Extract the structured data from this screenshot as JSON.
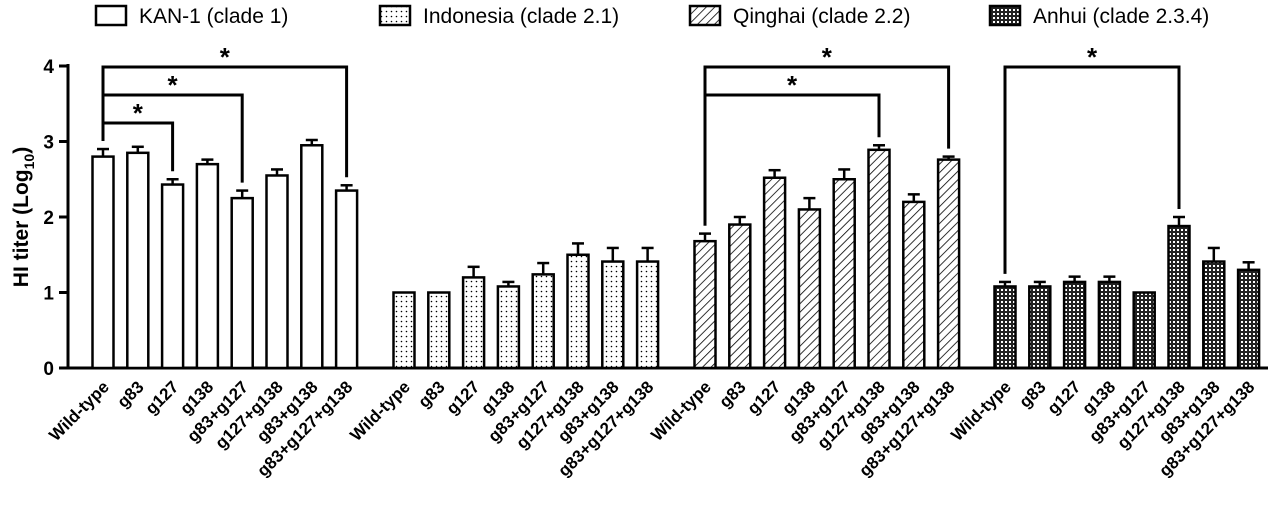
{
  "chart_data": {
    "type": "bar",
    "ylabel": "HI titer (Log",
    "ylabel_subscript": "10",
    "ylabel_suffix": ")",
    "ylim": [
      0,
      4
    ],
    "yticks": [
      "0",
      "1",
      "2",
      "3",
      "4"
    ],
    "legend_position": "top",
    "categories": [
      "Wild-type",
      "g83",
      "g127",
      "g138",
      "g83+g127",
      "g127+g138",
      "g83+g138",
      "g83+g127+g138"
    ],
    "series": [
      {
        "name": "KAN-1 (clade 1)",
        "pattern": "open",
        "values": [
          2.8,
          2.85,
          2.43,
          2.7,
          2.25,
          2.55,
          2.95,
          2.35
        ],
        "errors": [
          0.1,
          0.08,
          0.07,
          0.06,
          0.1,
          0.08,
          0.07,
          0.07
        ],
        "significance": [
          {
            "from": "Wild-type",
            "to": "g127",
            "label": "*"
          },
          {
            "from": "Wild-type",
            "to": "g83+g127",
            "label": "*"
          },
          {
            "from": "Wild-type",
            "to": "g83+g127+g138",
            "label": "*"
          }
        ]
      },
      {
        "name": "Indonesia (clade  2.1)",
        "pattern": "dots",
        "values": [
          1.0,
          1.0,
          1.2,
          1.08,
          1.24,
          1.5,
          1.41,
          1.41
        ],
        "errors": [
          0.0,
          0.0,
          0.14,
          0.06,
          0.15,
          0.15,
          0.18,
          0.18
        ],
        "significance": []
      },
      {
        "name": "Qinghai (clade 2.2)",
        "pattern": "hatch",
        "values": [
          1.68,
          1.9,
          2.52,
          2.1,
          2.5,
          2.89,
          2.2,
          2.76
        ],
        "errors": [
          0.1,
          0.1,
          0.1,
          0.15,
          0.13,
          0.06,
          0.1,
          0.04
        ],
        "significance": [
          {
            "from": "Wild-type",
            "to": "g127+g138",
            "label": "*"
          },
          {
            "from": "Wild-type",
            "to": "g83+g127+g138",
            "label": "*"
          }
        ]
      },
      {
        "name": "Anhui (clade 2.3.4)",
        "pattern": "grid",
        "values": [
          1.08,
          1.08,
          1.14,
          1.14,
          1.0,
          1.88,
          1.41,
          1.3
        ],
        "errors": [
          0.06,
          0.06,
          0.07,
          0.07,
          0.0,
          0.12,
          0.18,
          0.1
        ],
        "significance": [
          {
            "from": "Wild-type",
            "to": "g127+g138",
            "label": "*"
          }
        ]
      }
    ]
  }
}
